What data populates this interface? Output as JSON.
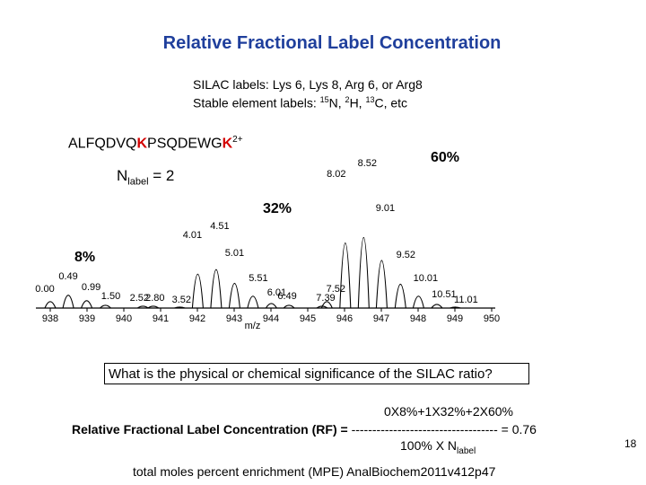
{
  "slide": {
    "title": "Relative Fractional Label Concentration",
    "subtitle_line1": "SILAC labels: Lys 6, Lys 8, Arg 6, or Arg8",
    "subtitle_line2_prefix": "Stable element labels: ",
    "subtitle_line2_n": "N, ",
    "subtitle_line2_h": "H, ",
    "subtitle_line2_c": "C, etc",
    "sup_15": "15",
    "sup_2": "2",
    "sup_13": "13",
    "peptide_part1": "ALFQDVQ",
    "peptide_k1": "K",
    "peptide_part2": "PSQDEWG",
    "peptide_k2": "K",
    "peptide_charge": "2+",
    "nlabel_n": "N",
    "nlabel_sub": "label",
    "nlabel_value": " = 2",
    "pct_8": "8%",
    "pct_32": "32%",
    "pct_60": "60%",
    "question": "What is the physical or chemical  significance of the SILAC ratio?",
    "rf_numerator": "0X8%+1X32%+2X60%",
    "rf_label": "Relative Fractional Label Concentration (RF) = ",
    "rf_dashes": "----------------------------------- =  0.76",
    "rf_denominator": "100% X N",
    "rf_denominator_sub": "label",
    "page_number": "18",
    "footer": "total moles percent enrichment  (MPE)  AnalBiochem2011v412p47"
  },
  "chart_data": {
    "type": "line",
    "description_kind": "mass spectrum (stick peaks)",
    "xlabel": "m/z",
    "ylabel": "",
    "xlim": [
      938,
      950
    ],
    "x_ticks": [
      "938",
      "939",
      "940",
      "941",
      "942",
      "943",
      "944",
      "945",
      "946",
      "947",
      "948",
      "949",
      "950"
    ],
    "grid": false,
    "peaks": [
      {
        "mz": 938.0,
        "label": "0.00",
        "intensity": 0.07
      },
      {
        "mz": 938.49,
        "label": "0.49",
        "intensity": 0.14
      },
      {
        "mz": 938.99,
        "label": "0.99",
        "intensity": 0.08
      },
      {
        "mz": 939.5,
        "label": "1.50",
        "intensity": 0.03
      },
      {
        "mz": 940.52,
        "label": "2.52",
        "intensity": 0.02
      },
      {
        "mz": 940.8,
        "label": "2.80",
        "intensity": 0.02
      },
      {
        "mz": 941.52,
        "label": "3.52",
        "intensity": 0.01
      },
      {
        "mz": 942.01,
        "label": "4.01",
        "intensity": 0.37
      },
      {
        "mz": 942.51,
        "label": "4.51",
        "intensity": 0.42
      },
      {
        "mz": 943.01,
        "label": "5.01",
        "intensity": 0.27
      },
      {
        "mz": 943.51,
        "label": "5.51",
        "intensity": 0.13
      },
      {
        "mz": 944.01,
        "label": "6.01",
        "intensity": 0.05
      },
      {
        "mz": 944.49,
        "label": "6.49",
        "intensity": 0.03
      },
      {
        "mz": 945.39,
        "label": "7.39",
        "intensity": 0.02
      },
      {
        "mz": 945.52,
        "label": "7.52",
        "intensity": 0.07
      },
      {
        "mz": 946.02,
        "label": "8.02",
        "intensity": 0.71
      },
      {
        "mz": 946.52,
        "label": "8.52",
        "intensity": 0.77
      },
      {
        "mz": 947.01,
        "label": "9.01",
        "intensity": 0.52
      },
      {
        "mz": 947.52,
        "label": "9.52",
        "intensity": 0.26
      },
      {
        "mz": 948.01,
        "label": "10.01",
        "intensity": 0.13
      },
      {
        "mz": 948.51,
        "label": "10.51",
        "intensity": 0.04
      },
      {
        "mz": 949.01,
        "label": "11.01",
        "intensity": 0.01
      }
    ]
  }
}
